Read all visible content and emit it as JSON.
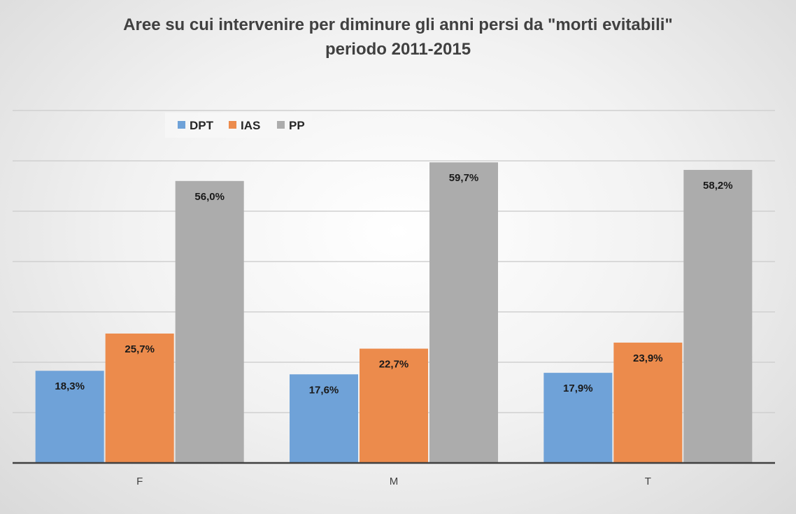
{
  "chart_data": {
    "type": "bar",
    "title": "Aree su cui intervenire per diminure gli anni persi da \"morti evitabili\"",
    "subtitle": "periodo 2011-2015",
    "categories": [
      "F",
      "M",
      "T"
    ],
    "series": [
      {
        "name": "DPT",
        "color": "#6fa2d8",
        "values": [
          18.3,
          17.6,
          17.9
        ],
        "labels": [
          "18,3%",
          "17,6%",
          "17,9%"
        ]
      },
      {
        "name": "IAS",
        "color": "#ec8b4c",
        "values": [
          25.7,
          22.7,
          23.9
        ],
        "labels": [
          "25,7%",
          "22,7%",
          "23,9%"
        ]
      },
      {
        "name": "PP",
        "color": "#acacac",
        "values": [
          56.0,
          59.7,
          58.2
        ],
        "labels": [
          "56,0%",
          "59,7%",
          "58,2%"
        ]
      }
    ],
    "ylim": [
      0,
      70
    ],
    "y_gridline_step": 10,
    "grid": true,
    "legend_position": "top-left",
    "xlabel": "",
    "ylabel": ""
  }
}
